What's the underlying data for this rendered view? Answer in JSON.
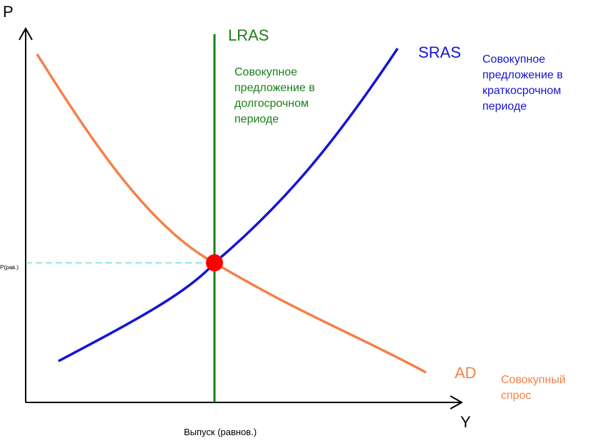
{
  "axes": {
    "y_label": "P",
    "x_label": "Y",
    "equilibrium_price_label": "P(рав.)",
    "equilibrium_output_label": "Выпуск (равнов.)"
  },
  "curves": {
    "lras": {
      "name": "LRAS",
      "description_lines": [
        "Совокупное",
        "предложение в",
        "долгосрочном",
        "периоде"
      ],
      "color": "#1a7f1a"
    },
    "sras": {
      "name": "SRAS",
      "description_lines": [
        "Совокупное",
        "предложение в",
        "краткосрочном",
        "периоде"
      ],
      "color": "#1414d6"
    },
    "ad": {
      "name": "AD",
      "description_lines": [
        "Совокупный",
        "спрос"
      ],
      "color": "#f4804a"
    }
  },
  "equilibrium": {
    "marker_color": "#ff0000",
    "guide_color": "#2ec9c9"
  },
  "axis_color": "#000000"
}
